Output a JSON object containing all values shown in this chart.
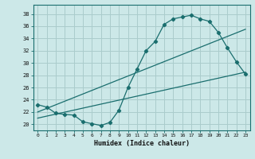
{
  "xlabel": "Humidex (Indice chaleur)",
  "bg_color": "#cce8e8",
  "grid_color": "#aacccc",
  "line_color": "#1a6e6e",
  "x_ticks": [
    0,
    1,
    2,
    3,
    4,
    5,
    6,
    7,
    8,
    9,
    10,
    11,
    12,
    13,
    14,
    15,
    16,
    17,
    18,
    19,
    20,
    21,
    22,
    23
  ],
  "y_ticks": [
    20,
    22,
    24,
    26,
    28,
    30,
    32,
    34,
    36,
    38
  ],
  "xlim": [
    -0.5,
    23.5
  ],
  "ylim": [
    19.0,
    39.5
  ],
  "curve1_x": [
    0,
    1,
    2,
    3,
    4,
    5,
    6,
    7,
    8,
    9,
    10,
    11,
    12,
    13,
    14,
    15,
    16,
    17,
    18,
    19,
    20,
    21,
    22,
    23
  ],
  "curve1_y": [
    23.2,
    22.8,
    21.8,
    21.6,
    21.5,
    20.4,
    20.1,
    19.8,
    20.3,
    22.3,
    26.0,
    29.0,
    32.0,
    33.5,
    36.3,
    37.2,
    37.5,
    37.8,
    37.2,
    36.8,
    35.0,
    32.5,
    30.2,
    28.2
  ],
  "curve2_x": [
    0,
    23
  ],
  "curve2_y": [
    22.0,
    35.5
  ],
  "curve3_x": [
    0,
    23
  ],
  "curve3_y": [
    21.0,
    28.5
  ]
}
